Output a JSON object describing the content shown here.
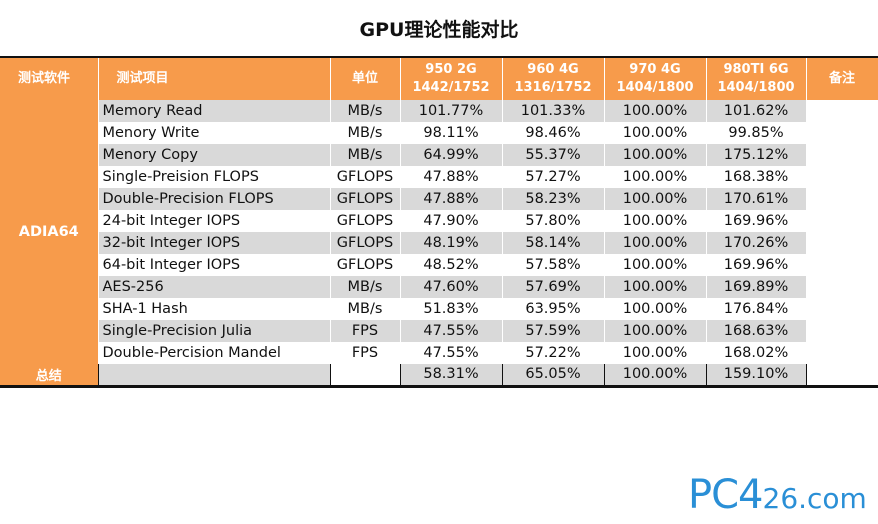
{
  "title": "GPU理论性能对比",
  "header": {
    "software": "测试软件",
    "item": "测试项目",
    "unit": "单位",
    "gpus": [
      {
        "name": "950 2G",
        "clock": "1442/1752"
      },
      {
        "name": "960 4G",
        "clock": "1316/1752"
      },
      {
        "name": "970 4G",
        "clock": "1404/1800"
      },
      {
        "name": "980TI 6G",
        "clock": "1404/1800"
      }
    ],
    "note": "备注"
  },
  "software_name": "ADIA64",
  "rows": [
    {
      "item": "Memory Read",
      "unit": "MB/s",
      "v": [
        "101.77%",
        "101.33%",
        "100.00%",
        "101.62%"
      ]
    },
    {
      "item": "Menory Write",
      "unit": "MB/s",
      "v": [
        "98.11%",
        "98.46%",
        "100.00%",
        "99.85%"
      ]
    },
    {
      "item": "Menory Copy",
      "unit": "MB/s",
      "v": [
        "64.99%",
        "55.37%",
        "100.00%",
        "175.12%"
      ]
    },
    {
      "item": "Single-Preision FLOPS",
      "unit": "GFLOPS",
      "v": [
        "47.88%",
        "57.27%",
        "100.00%",
        "168.38%"
      ]
    },
    {
      "item": "Double-Precision FLOPS",
      "unit": "GFLOPS",
      "v": [
        "47.88%",
        "58.23%",
        "100.00%",
        "170.61%"
      ]
    },
    {
      "item": "24-bit Integer IOPS",
      "unit": "GFLOPS",
      "v": [
        "47.90%",
        "57.80%",
        "100.00%",
        "169.96%"
      ]
    },
    {
      "item": "32-bit Integer IOPS",
      "unit": "GFLOPS",
      "v": [
        "48.19%",
        "58.14%",
        "100.00%",
        "170.26%"
      ]
    },
    {
      "item": "64-bit Integer IOPS",
      "unit": "GFLOPS",
      "v": [
        "48.52%",
        "57.58%",
        "100.00%",
        "169.96%"
      ]
    },
    {
      "item": "AES-256",
      "unit": "MB/s",
      "v": [
        "47.60%",
        "57.69%",
        "100.00%",
        "169.89%"
      ]
    },
    {
      "item": "SHA-1 Hash",
      "unit": "MB/s",
      "v": [
        "51.83%",
        "63.95%",
        "100.00%",
        "176.84%"
      ]
    },
    {
      "item": "Single-Precision Julia",
      "unit": "FPS",
      "v": [
        "47.55%",
        "57.59%",
        "100.00%",
        "168.63%"
      ]
    },
    {
      "item": "Double-Percision Mandel",
      "unit": "FPS",
      "v": [
        "47.55%",
        "57.22%",
        "100.00%",
        "168.02%"
      ]
    }
  ],
  "summary": {
    "label": "总结",
    "v": [
      "58.31%",
      "65.05%",
      "100.00%",
      "159.10%"
    ]
  },
  "watermark": {
    "big": "PC4",
    "small": "26.com"
  },
  "colors": {
    "header_orange": "#f79b4b",
    "row_gray": "#d9d9d9",
    "watermark_blue": "#2a8fd6"
  }
}
